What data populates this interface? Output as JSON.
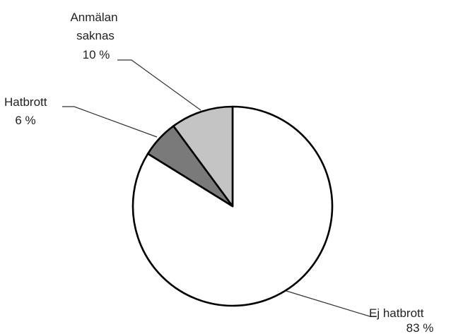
{
  "chart_data": {
    "type": "pie",
    "title": "",
    "slices": [
      {
        "name": "Ej hatbrott",
        "value": 83,
        "value_label": "83 %",
        "color": "#ffffff"
      },
      {
        "name": "Hatbrott",
        "value": 6,
        "value_label": "6 %",
        "color": "#7a7a7a"
      },
      {
        "name": "Anmälan saknas",
        "name_lines": [
          "Anmälan",
          "saknas"
        ],
        "value": 10,
        "value_label": "10 %",
        "color": "#c4c4c4"
      }
    ],
    "legend": "none"
  }
}
